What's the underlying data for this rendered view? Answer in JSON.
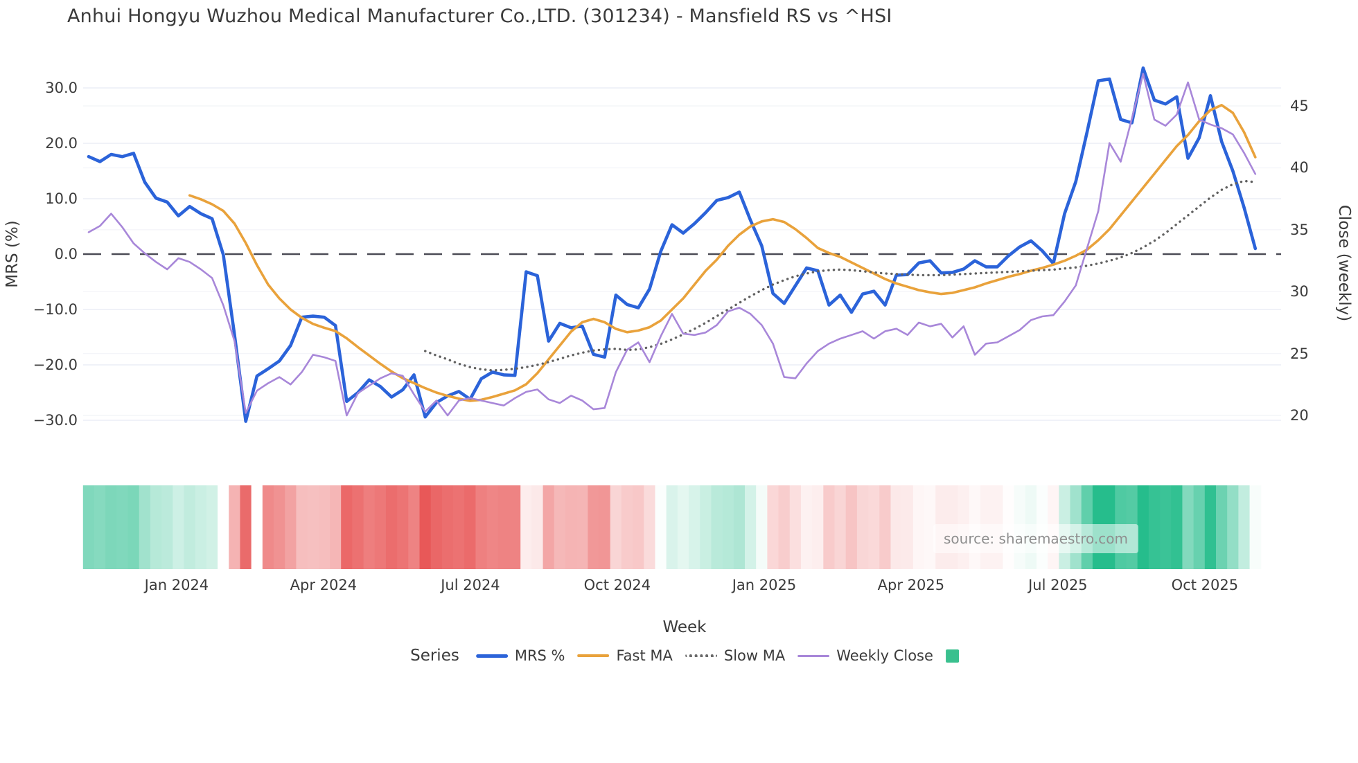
{
  "title": "Anhui Hongyu Wuzhou Medical Manufacturer Co.,LTD. (301234) - Mansfield RS vs ^HSI",
  "source_text": "source: sharemaestro.com",
  "axes": {
    "left": {
      "label": "MRS (%)",
      "tick_labels": [
        "30.0",
        "20.0",
        "10.0",
        "0.0",
        "−10.0",
        "−20.0",
        "−30.0"
      ],
      "tick_values": [
        30,
        20,
        10,
        0,
        -10,
        -20,
        -30
      ]
    },
    "right": {
      "label": "Close (weekly)",
      "tick_labels": [
        "45",
        "40",
        "35",
        "30",
        "25",
        "20"
      ],
      "tick_values": [
        45,
        40,
        35,
        30,
        25,
        20
      ]
    },
    "x": {
      "label": "Week",
      "tick_labels": [
        "Jan 2024",
        "Apr 2024",
        "Jul 2024",
        "Oct 2024",
        "Jan 2025",
        "Apr 2025",
        "Jul 2025",
        "Oct 2025"
      ],
      "tick_weeks": [
        7.84,
        20.93,
        34.03,
        47.12,
        60.22,
        73.31,
        86.4,
        99.5
      ]
    }
  },
  "legend": {
    "title": "Series",
    "items": [
      {
        "label": "MRS %",
        "color": "#2b63d9",
        "style": "solid-thick"
      },
      {
        "label": "Fast MA",
        "color": "#e9a23b",
        "style": "solid-mid"
      },
      {
        "label": "Slow MA",
        "color": "#6a6a6a",
        "style": "dot"
      },
      {
        "label": "Weekly Close",
        "color": "#a887d9",
        "style": "solid-thin"
      },
      {
        "label": "",
        "color": "#39c08e",
        "style": "square"
      }
    ]
  },
  "colors": {
    "grid": "#ecedf5",
    "grid_faint": "#f4f5f9",
    "zero_line": "#4b4b55",
    "mrs": "#2b63d9",
    "fast": "#e9a23b",
    "slow": "#616161",
    "close": "#a887d9",
    "heat_green": "#26bd8c",
    "heat_red": "#e85555",
    "text": "#3a3a3a"
  },
  "chart_data": {
    "type": "line",
    "title": "Anhui Hongyu Wuzhou Medical Manufacturer Co.,LTD. (301234) - Mansfield RS vs ^HSI",
    "xlabel": "Week",
    "ylabel_left": "MRS (%)",
    "ylabel_right": "Close (weekly)",
    "x_start": "Nov 2023",
    "x_end": "Nov 2025",
    "weeks_total": 105,
    "ylim_left": [
      -33,
      33
    ],
    "ylim_right": [
      19,
      48
    ],
    "grid": true,
    "legend_position": "bottom",
    "series": [
      {
        "name": "MRS %",
        "axis": "left",
        "start_week": 0,
        "values": [
          17.6,
          16.7,
          18.0,
          17.6,
          18.2,
          13.0,
          10.1,
          9.4,
          6.9,
          8.6,
          7.3,
          6.4,
          -0.1,
          -14.6,
          -30.2,
          -22.0,
          -20.7,
          -19.3,
          -16.5,
          -11.4,
          -11.2,
          -11.4,
          -12.9,
          -26.6,
          -25.0,
          -22.7,
          -23.9,
          -25.8,
          -24.5,
          -21.8,
          -29.4,
          -26.8,
          -25.6,
          -24.8,
          -26.2,
          -22.5,
          -21.3,
          -21.8,
          -21.9,
          -3.2,
          -3.9,
          -15.7,
          -12.5,
          -13.3,
          -13.0,
          -18.1,
          -18.6,
          -7.4,
          -9.1,
          -9.7,
          -6.3,
          0.5,
          5.3,
          3.8,
          5.5,
          7.5,
          9.7,
          10.2,
          11.2,
          6.1,
          1.5,
          -7.1,
          -8.9,
          -5.7,
          -2.5,
          -3.0,
          -9.2,
          -7.4,
          -10.5,
          -7.2,
          -6.7,
          -9.2,
          -3.8,
          -3.7,
          -1.6,
          -1.2,
          -3.4,
          -3.3,
          -2.7,
          -1.2,
          -2.3,
          -2.3,
          -0.3,
          1.3,
          2.4,
          0.6,
          -1.7,
          7.3,
          13.1,
          22.0,
          31.3,
          31.6,
          24.3,
          23.7,
          33.6,
          27.8,
          27.1,
          28.4,
          17.3,
          21.0,
          28.6,
          20.3,
          15.0,
          8.4,
          1.0
        ]
      },
      {
        "name": "Fast MA",
        "axis": "left",
        "start_week": 9,
        "values": [
          10.6,
          9.9,
          9.0,
          7.8,
          5.5,
          2.0,
          -2.0,
          -5.5,
          -8.0,
          -10.0,
          -11.5,
          -12.6,
          -13.3,
          -13.9,
          -15.2,
          -16.8,
          -18.3,
          -19.8,
          -21.2,
          -22.4,
          -23.3,
          -24.2,
          -25.0,
          -25.6,
          -26.1,
          -26.5,
          -26.3,
          -25.8,
          -25.2,
          -24.6,
          -23.5,
          -21.5,
          -19.0,
          -16.5,
          -14.0,
          -12.3,
          -11.7,
          -12.3,
          -13.5,
          -14.1,
          -13.8,
          -13.2,
          -12.0,
          -10.0,
          -8.0,
          -5.5,
          -3.0,
          -1.0,
          1.5,
          3.5,
          5.0,
          5.9,
          6.3,
          5.8,
          4.5,
          2.9,
          1.1,
          0.2,
          -0.5,
          -1.5,
          -2.5,
          -3.5,
          -4.5,
          -5.3,
          -5.9,
          -6.5,
          -6.9,
          -7.2,
          -7.0,
          -6.5,
          -6.0,
          -5.3,
          -4.7,
          -4.1,
          -3.6,
          -3.0,
          -2.5,
          -1.9,
          -1.2,
          -0.3,
          0.8,
          2.5,
          4.5,
          7.0,
          9.5,
          12.0,
          14.5,
          17.0,
          19.5,
          21.5,
          24.0,
          26.0,
          26.9,
          25.5,
          22.0,
          17.5
        ]
      },
      {
        "name": "Slow MA",
        "axis": "left",
        "start_week": 30,
        "values": [
          -17.5,
          -18.3,
          -19.0,
          -19.8,
          -20.4,
          -20.8,
          -21.0,
          -20.9,
          -20.7,
          -20.4,
          -20.0,
          -19.5,
          -18.9,
          -18.3,
          -17.8,
          -17.4,
          -17.2,
          -17.1,
          -17.3,
          -17.2,
          -16.8,
          -16.2,
          -15.4,
          -14.5,
          -13.5,
          -12.4,
          -11.2,
          -10.0,
          -8.8,
          -7.6,
          -6.5,
          -5.5,
          -4.7,
          -4.0,
          -3.5,
          -3.1,
          -2.9,
          -2.8,
          -2.9,
          -3.1,
          -3.3,
          -3.5,
          -3.6,
          -3.7,
          -3.8,
          -3.8,
          -3.8,
          -3.7,
          -3.6,
          -3.5,
          -3.4,
          -3.3,
          -3.2,
          -3.1,
          -3.0,
          -2.9,
          -2.8,
          -2.6,
          -2.4,
          -2.1,
          -1.7,
          -1.2,
          -0.6,
          0.2,
          1.2,
          2.4,
          3.8,
          5.4,
          7.0,
          8.6,
          10.2,
          11.6,
          12.6,
          13.2,
          13.0
        ]
      },
      {
        "name": "Weekly Close",
        "axis": "right",
        "start_week": 0,
        "values": [
          34.8,
          35.3,
          36.3,
          35.2,
          33.9,
          33.1,
          32.4,
          31.8,
          32.7,
          32.4,
          31.8,
          31.1,
          28.9,
          26.0,
          20.2,
          22.0,
          22.6,
          23.1,
          22.5,
          23.5,
          24.9,
          24.7,
          24.4,
          20.0,
          21.8,
          22.4,
          23.0,
          23.4,
          23.2,
          21.7,
          20.3,
          21.2,
          20.0,
          21.2,
          21.4,
          21.2,
          21.0,
          20.8,
          21.4,
          21.9,
          22.1,
          21.3,
          21.0,
          21.6,
          21.2,
          20.5,
          20.6,
          23.5,
          25.3,
          25.9,
          24.3,
          26.4,
          28.2,
          26.6,
          26.5,
          26.7,
          27.3,
          28.4,
          28.7,
          28.2,
          27.3,
          25.8,
          23.1,
          23.0,
          24.2,
          25.2,
          25.8,
          26.2,
          26.5,
          26.8,
          26.2,
          26.8,
          27.0,
          26.5,
          27.5,
          27.2,
          27.4,
          26.3,
          27.2,
          24.9,
          25.8,
          25.9,
          26.4,
          26.9,
          27.7,
          28.0,
          28.1,
          29.2,
          30.5,
          33.5,
          36.5,
          42.0,
          40.5,
          44.0,
          47.6,
          43.9,
          43.4,
          44.3,
          46.9,
          43.9,
          43.5,
          43.2,
          42.7,
          41.2,
          39.5
        ]
      }
    ],
    "heatmap": {
      "description": "weekly relative-strength heat strip, green positive / red negative, driven by MRS % values",
      "scale_max": 30,
      "overrides": {
        "12": "#ffffff",
        "13": "#f5b3b3",
        "14": "#ea6b6b",
        "15": "#ffffff"
      }
    }
  }
}
